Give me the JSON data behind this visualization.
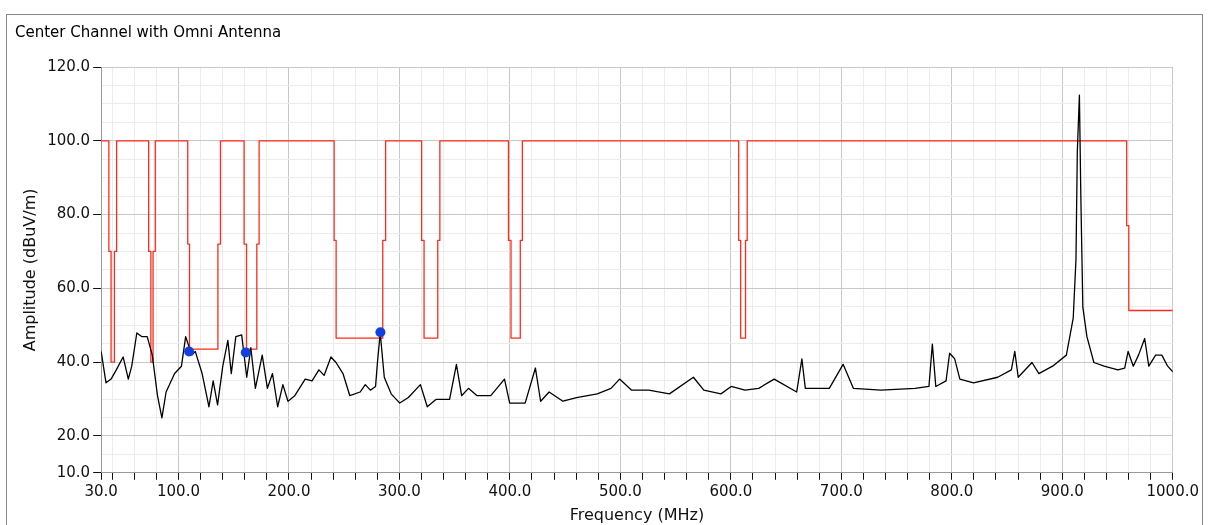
{
  "chart_data": {
    "type": "line",
    "title": "Center Channel with Omni Antenna",
    "xlabel": "Frequency (MHz)",
    "ylabel": "Amplitude (dBuV/m)",
    "xlim": [
      30,
      1000
    ],
    "ylim": [
      10,
      120
    ],
    "xticks": [
      {
        "value": 30,
        "label": "30.0"
      },
      {
        "value": 40,
        "label": null
      },
      {
        "value": 60,
        "label": null
      },
      {
        "value": 80,
        "label": null
      },
      {
        "value": 100,
        "label": "100.0"
      },
      {
        "value": 120,
        "label": null
      },
      {
        "value": 140,
        "label": null
      },
      {
        "value": 160,
        "label": null
      },
      {
        "value": 180,
        "label": null
      },
      {
        "value": 200,
        "label": "200.0"
      },
      {
        "value": 220,
        "label": null
      },
      {
        "value": 240,
        "label": null
      },
      {
        "value": 260,
        "label": null
      },
      {
        "value": 280,
        "label": null
      },
      {
        "value": 300,
        "label": "300.0"
      },
      {
        "value": 320,
        "label": null
      },
      {
        "value": 340,
        "label": null
      },
      {
        "value": 360,
        "label": null
      },
      {
        "value": 380,
        "label": null
      },
      {
        "value": 400,
        "label": "400.0"
      },
      {
        "value": 420,
        "label": null
      },
      {
        "value": 440,
        "label": null
      },
      {
        "value": 460,
        "label": null
      },
      {
        "value": 480,
        "label": null
      },
      {
        "value": 500,
        "label": "500.0"
      },
      {
        "value": 520,
        "label": null
      },
      {
        "value": 540,
        "label": null
      },
      {
        "value": 560,
        "label": null
      },
      {
        "value": 580,
        "label": null
      },
      {
        "value": 600,
        "label": "600.0"
      },
      {
        "value": 620,
        "label": null
      },
      {
        "value": 640,
        "label": null
      },
      {
        "value": 660,
        "label": null
      },
      {
        "value": 680,
        "label": null
      },
      {
        "value": 700,
        "label": "700.0"
      },
      {
        "value": 720,
        "label": null
      },
      {
        "value": 740,
        "label": null
      },
      {
        "value": 760,
        "label": null
      },
      {
        "value": 780,
        "label": null
      },
      {
        "value": 800,
        "label": "800.0"
      },
      {
        "value": 820,
        "label": null
      },
      {
        "value": 840,
        "label": null
      },
      {
        "value": 860,
        "label": null
      },
      {
        "value": 880,
        "label": null
      },
      {
        "value": 900,
        "label": "900.0"
      },
      {
        "value": 920,
        "label": null
      },
      {
        "value": 940,
        "label": null
      },
      {
        "value": 960,
        "label": null
      },
      {
        "value": 980,
        "label": null
      },
      {
        "value": 1000,
        "label": "1000.0"
      }
    ],
    "yticks": [
      {
        "value": 10,
        "label": "10.0"
      },
      {
        "value": 15,
        "label": null
      },
      {
        "value": 20,
        "label": "20.0"
      },
      {
        "value": 25,
        "label": null
      },
      {
        "value": 30,
        "label": null
      },
      {
        "value": 35,
        "label": null
      },
      {
        "value": 40,
        "label": "40.0"
      },
      {
        "value": 45,
        "label": null
      },
      {
        "value": 50,
        "label": null
      },
      {
        "value": 55,
        "label": null
      },
      {
        "value": 60,
        "label": "60.0"
      },
      {
        "value": 65,
        "label": null
      },
      {
        "value": 70,
        "label": null
      },
      {
        "value": 75,
        "label": null
      },
      {
        "value": 80,
        "label": "80.0"
      },
      {
        "value": 85,
        "label": null
      },
      {
        "value": 90,
        "label": null
      },
      {
        "value": 95,
        "label": null
      },
      {
        "value": 100,
        "label": "100.0"
      },
      {
        "value": 105,
        "label": null
      },
      {
        "value": 110,
        "label": null
      },
      {
        "value": 115,
        "label": null
      },
      {
        "value": 120,
        "label": "120.0"
      }
    ],
    "grid": true,
    "legend": false,
    "series": [
      {
        "type": "step",
        "color": "#ff2a1a",
        "marker": "none",
        "x": [
          30,
          37,
          39,
          42,
          44,
          73,
          75,
          77,
          79,
          108.4,
          110,
          135.7,
          138,
          159.4,
          161.6,
          170.9,
          173,
          240.9,
          242.7,
          284.9,
          287.5,
          320.1,
          322.3,
          334.7,
          336.6,
          398.7,
          401,
          409.4,
          411.3,
          607.1,
          608.9,
          613.3,
          614.8,
          958.3,
          960.2,
          1000
        ],
        "values": [
          100,
          70,
          40,
          70,
          100,
          70,
          40,
          70,
          100,
          72,
          43.5,
          72,
          100,
          72,
          43.5,
          72,
          100,
          73,
          46.5,
          73,
          100,
          73,
          46.5,
          73,
          100,
          73,
          46.5,
          73,
          100,
          73,
          46.5,
          73,
          100,
          77,
          54,
          54
        ]
      },
      {
        "type": "line",
        "color": "#000000",
        "marker": "none",
        "x": [
          30,
          34.4,
          39,
          43.7,
          49.9,
          54.6,
          57.7,
          62.3,
          67,
          71.7,
          76.3,
          81,
          85,
          88.8,
          96.5,
          102.7,
          106.5,
          112.1,
          115.2,
          121.4,
          127.6,
          131.4,
          135.4,
          140.1,
          144.7,
          147.8,
          151.9,
          157.2,
          161.8,
          165.5,
          169.6,
          175.8,
          180.5,
          185.1,
          189.8,
          194.5,
          199.1,
          205.3,
          214.7,
          220.9,
          227.1,
          231.8,
          238,
          242.6,
          248.9,
          255.1,
          264.4,
          269.1,
          273.7,
          278.4,
          280.1,
          282.6,
          286.3,
          292.5,
          300.3,
          308.1,
          319,
          325.2,
          333,
          345.4,
          351.6,
          356.3,
          362.5,
          370.3,
          382.7,
          395.1,
          399.8,
          413.8,
          423.1,
          427.8,
          435.5,
          448,
          460.4,
          479.1,
          491.5,
          499.3,
          510.2,
          525.7,
          544.4,
          566.1,
          575.5,
          591,
          600.3,
          612.8,
          625.2,
          639.2,
          659.6,
          664.3,
          667.4,
          689.1,
          701.6,
          710.9,
          735.8,
          766.8,
          779.3,
          782.4,
          785.5,
          794.8,
          798,
          802.6,
          807.3,
          819.7,
          841.5,
          853.9,
          857,
          860.1,
          872.6,
          878.8,
          891.2,
          903.7,
          909.9,
          912.4,
          913.6,
          915.5,
          916.8,
          918.6,
          922.3,
          928.6,
          937.9,
          950.3,
          956.5,
          959.6,
          964.3,
          969,
          974.6,
          978.3,
          984.5,
          990.1,
          995.4,
          1000
        ],
        "values": [
          42.9,
          34.4,
          35.4,
          37.9,
          41.4,
          35.4,
          38.9,
          47.9,
          46.9,
          46.9,
          41.9,
          30.9,
          24.9,
          31.9,
          36.9,
          38.9,
          46.9,
          41.9,
          42.9,
          36.9,
          27.9,
          34.9,
          28.4,
          38.9,
          45.9,
          36.9,
          46.9,
          47.4,
          35.9,
          43.9,
          32.9,
          41.9,
          32.9,
          36.9,
          27.9,
          33.9,
          29.4,
          30.9,
          35.4,
          34.9,
          37.9,
          36.4,
          41.4,
          39.9,
          36.9,
          30.9,
          31.9,
          33.9,
          32.4,
          33.4,
          39.9,
          47.9,
          35.9,
          31.4,
          28.9,
          30.4,
          33.9,
          27.9,
          29.9,
          29.9,
          39.4,
          30.9,
          32.9,
          30.9,
          30.9,
          35.4,
          28.9,
          28.9,
          38.4,
          29.4,
          31.9,
          29.4,
          30.4,
          31.4,
          32.9,
          35.4,
          32.4,
          32.4,
          31.4,
          35.9,
          32.4,
          31.4,
          33.4,
          32.4,
          32.9,
          35.4,
          31.9,
          40.9,
          32.9,
          32.9,
          39.4,
          32.9,
          32.4,
          32.9,
          33.4,
          44.9,
          33.4,
          34.9,
          42.4,
          40.9,
          35.4,
          34.4,
          35.9,
          37.9,
          42.9,
          35.9,
          39.9,
          36.9,
          38.9,
          41.9,
          51.9,
          67.9,
          96.9,
          112.4,
          84.9,
          54.9,
          46.9,
          39.9,
          38.9,
          37.9,
          38.4,
          42.9,
          38.9,
          41.9,
          46.4,
          38.9,
          41.9,
          41.9,
          38.9,
          37.4
        ]
      },
      {
        "type": "scatter",
        "color": "#1040e0",
        "marker": "circle",
        "x": [
          109.6,
          160.9,
          282.8
        ],
        "values": [
          42.9,
          42.6,
          48.1
        ]
      }
    ]
  }
}
